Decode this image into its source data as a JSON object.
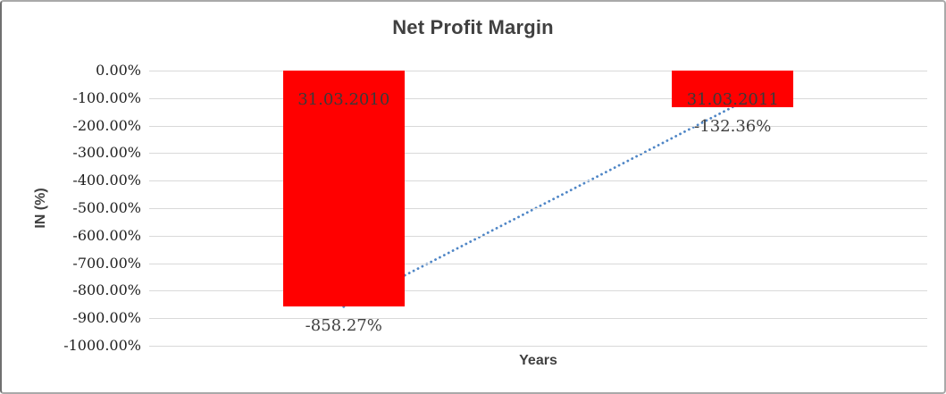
{
  "chart_data": {
    "type": "bar",
    "title": "Net Profit Margin",
    "xlabel": "Years",
    "ylabel": "IN (%)",
    "categories": [
      "31.03.2010",
      "31.03.2011"
    ],
    "values": [
      -858.27,
      -132.36
    ],
    "value_labels": [
      "-858.27%",
      "-132.36%"
    ],
    "ylim": [
      -1000,
      0
    ],
    "ytick_step": 100,
    "ytick_labels": [
      "0.00%",
      "-100.00%",
      "-200.00%",
      "-300.00%",
      "-400.00%",
      "-500.00%",
      "-600.00%",
      "-700.00%",
      "-800.00%",
      "-900.00%",
      "-1000.00%"
    ],
    "grid": true,
    "legend": "none",
    "bar_color": "#ff0000",
    "gridline_color": "#d9d9d9",
    "title_color": "#404040",
    "trendline": {
      "style": "dotted",
      "color": "#4f86c6",
      "from": {
        "category_index": 0,
        "value": -858.27
      },
      "to": {
        "category_index": 1,
        "value": -132.36
      }
    }
  }
}
